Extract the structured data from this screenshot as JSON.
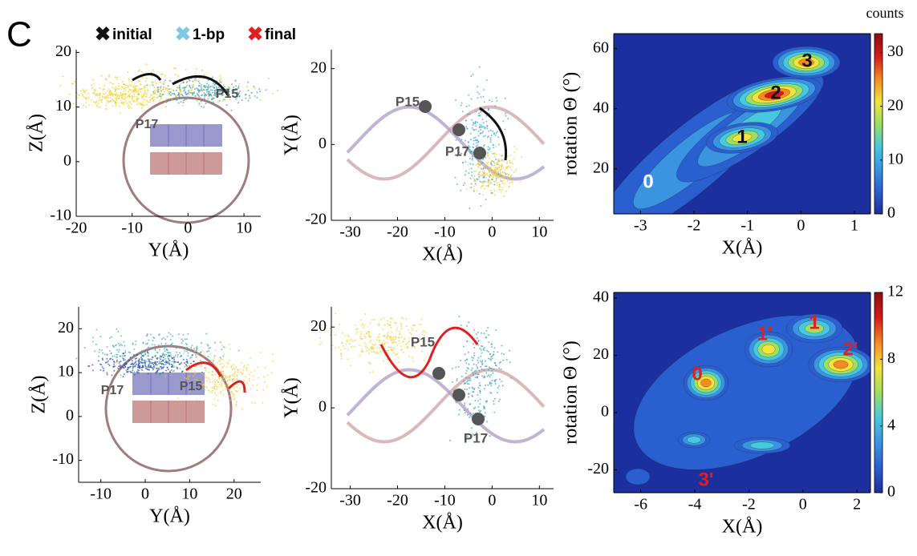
{
  "panel_label": "C",
  "legend": [
    {
      "label": "initial",
      "color": "#111111"
    },
    {
      "label": "1-bp",
      "color": "#7ec8e3"
    },
    {
      "label": "final",
      "color": "#e02020"
    }
  ],
  "charts": [
    {
      "type": "scatter",
      "xlabel": "Y(Å)",
      "ylabel": "Z(Å)",
      "xlim": [
        -20,
        13
      ],
      "ylim": [
        -10,
        20.5
      ],
      "xticks": [
        -20,
        -10,
        0,
        10
      ],
      "yticks": [
        -10,
        0,
        10,
        20
      ],
      "annotations": [
        "P17",
        "P15"
      ]
    },
    {
      "type": "scatter",
      "xlabel": "X(Å)",
      "ylabel": "Y(Å)",
      "xlim": [
        -34,
        13
      ],
      "ylim": [
        -20,
        25
      ],
      "xticks": [
        -30,
        -20,
        -10,
        0,
        10
      ],
      "yticks": [
        -20,
        0,
        20
      ],
      "annotations": [
        "P15",
        "P17"
      ]
    },
    {
      "type": "heatmap",
      "xlabel": "X(Å)",
      "ylabel": "rotation Θ (°)",
      "xlim": [
        -3.5,
        1.3
      ],
      "ylim": [
        5,
        65
      ],
      "xticks": [
        -3,
        -2,
        -1,
        0,
        1
      ],
      "yticks": [
        20,
        40,
        60
      ],
      "colorbar": {
        "label": "counts",
        "lim": [
          0,
          33.5
        ],
        "ticks": [
          0,
          10,
          20,
          30
        ]
      },
      "annotations": [
        "0",
        "1",
        "2",
        "3"
      ]
    },
    {
      "type": "scatter",
      "xlabel": "Y(Å)",
      "ylabel": "Z(Å)",
      "xlim": [
        -15,
        26
      ],
      "ylim": [
        -15,
        25
      ],
      "xticks": [
        -10,
        0,
        10,
        20
      ],
      "yticks": [
        -10,
        0,
        10,
        20
      ],
      "annotations": [
        "P17",
        "P15"
      ]
    },
    {
      "type": "scatter",
      "xlabel": "X(Å)",
      "ylabel": "Y(Å)",
      "xlim": [
        -34,
        13
      ],
      "ylim": [
        -20,
        25
      ],
      "xticks": [
        -30,
        -20,
        -10,
        0,
        10
      ],
      "yticks": [
        -20,
        0,
        20
      ],
      "annotations": [
        "P15",
        "P17"
      ]
    },
    {
      "type": "heatmap",
      "xlabel": "X(Å)",
      "ylabel": "rotation Θ (°)",
      "xlim": [
        -7,
        2.5
      ],
      "ylim": [
        -28,
        42
      ],
      "xticks": [
        -6,
        -4,
        -2,
        0,
        2
      ],
      "yticks": [
        -20,
        0,
        20,
        40
      ],
      "colorbar": {
        "lim": [
          0,
          12
        ],
        "ticks": [
          0,
          4,
          8,
          12
        ]
      },
      "annotations": [
        "0",
        "1'",
        "1",
        "2'",
        "3'"
      ]
    }
  ]
}
